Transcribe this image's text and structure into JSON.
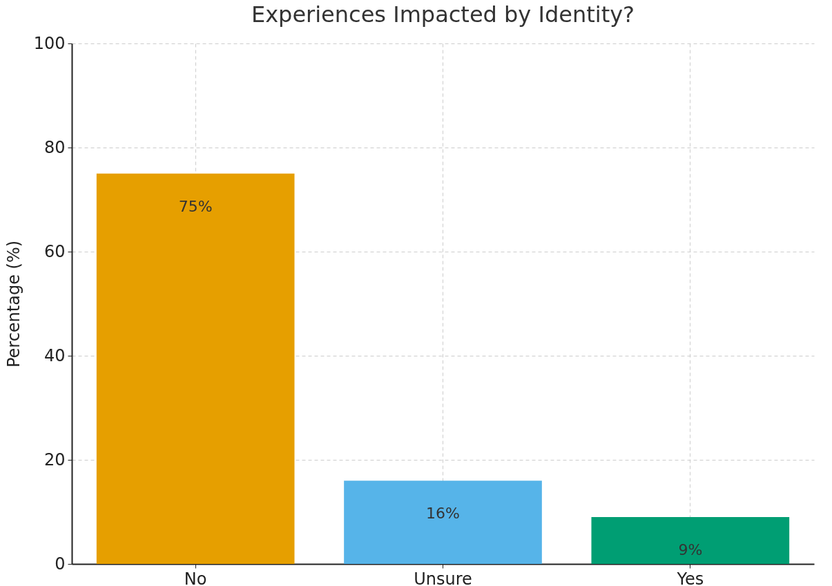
{
  "chart_data": {
    "type": "bar",
    "title": "Experiences Impacted by Identity?",
    "ylabel": "Percentage (%)",
    "categories": [
      "No",
      "Unsure",
      "Yes"
    ],
    "values": [
      75,
      16,
      9
    ],
    "colors": [
      "#e69f00",
      "#56b4e9",
      "#009e73"
    ],
    "value_labels": [
      "75%",
      "16%",
      "9%"
    ],
    "ylim": [
      0,
      100
    ],
    "yticks": [
      0,
      20,
      40,
      60,
      80,
      100
    ],
    "grid": true,
    "legend": false
  }
}
